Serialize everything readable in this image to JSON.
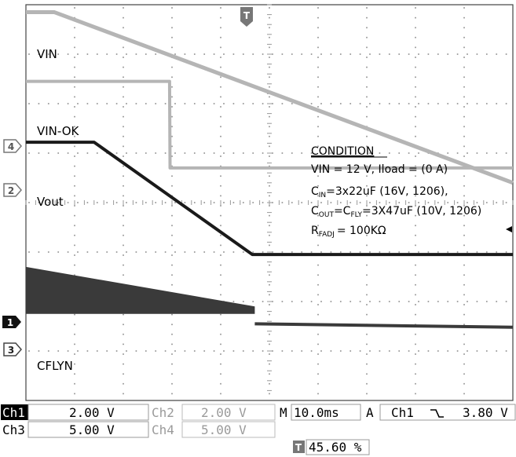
{
  "trace_labels": {
    "vin": "VIN",
    "vin_ok": "VIN-OK",
    "vout": "Vout",
    "cflyn": "CFLYN"
  },
  "channel_markers": {
    "ch4": "4",
    "ch2": "2",
    "ch1": "1",
    "ch3": "3",
    "trigger": "T"
  },
  "condition": {
    "title": "CONDITION",
    "line1": "VIN = 12 V, Iload = (0 A)",
    "cin_main": "C",
    "cin_sub": "IN",
    "cin_rest": "=3x22uF (16V, 1206),",
    "cout_main": "C",
    "cout_sub": "OUT",
    "cout_eq": "=C",
    "cfly_sub": "FLY",
    "cout_rest": "=3X47uF (10V, 1206)",
    "rfadj_main": "R",
    "rfadj_sub": "FADJ",
    "rfadj_rest": "= 100KΩ"
  },
  "status_bar": {
    "ch1_label": "Ch1",
    "ch1_scale": "2.00 V",
    "ch2_label": "Ch2",
    "ch2_scale": "2.00 V",
    "ch3_label": "Ch3",
    "ch3_scale": "5.00 V",
    "ch4_label": "Ch4",
    "ch4_scale": "5.00 V",
    "time_prefix": "M",
    "timebase": "10.0ms",
    "acq": "A",
    "trigger_source": "Ch1",
    "trigger_slope": "falling-edge-icon",
    "trigger_level": "3.80 V",
    "trigger_icon_text": "T",
    "trigger_position": "45.60 %"
  },
  "colors": {
    "grid": "#9a9a9a",
    "trace_light": "#b5b5b5",
    "trace_dark": "#1a1a1a",
    "cflyn_fill": "#3a3a3a"
  },
  "chart_data": {
    "type": "line",
    "grid": true,
    "x_divisions": 10,
    "y_divisions": 8,
    "series": [
      {
        "name": "VIN",
        "x": [
          0,
          0.58,
          10
        ],
        "y": [
          7.85,
          7.85,
          4.4
        ]
      },
      {
        "name": "VIN-OK",
        "x": [
          0,
          2.95,
          2.96,
          10
        ],
        "y": [
          6.45,
          6.45,
          4.7,
          4.7
        ]
      },
      {
        "name": "Vout",
        "x": [
          0,
          1.4,
          4.65,
          10
        ],
        "y": [
          5.22,
          5.22,
          2.95,
          2.95
        ]
      },
      {
        "name": "CFLYN",
        "x": [
          0,
          4.7,
          4.7,
          10
        ],
        "y": [
          2.7,
          1.9,
          1.55,
          1.48
        ]
      }
    ]
  }
}
